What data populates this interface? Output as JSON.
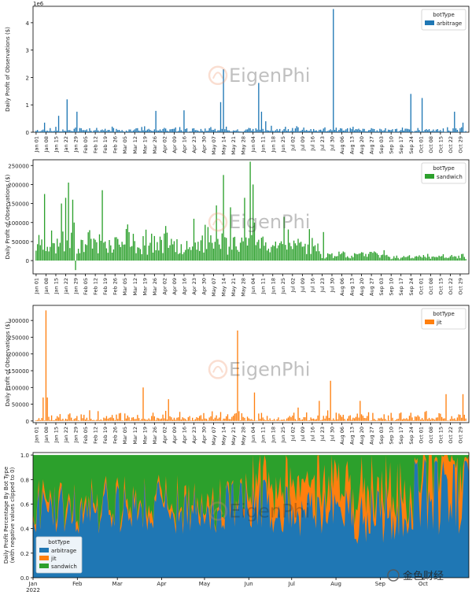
{
  "watermark": "EigenPhi",
  "footer_watermark": "金色财经",
  "colors": {
    "arbitrage": "#1f77b4",
    "sandwich": "#2ca02c",
    "jit": "#ff7f0e"
  },
  "chart_data": [
    {
      "type": "bar",
      "ylabel": "Daily Profit of Observations ($)",
      "ylim": [
        0,
        4600000
      ],
      "yticks": [
        0,
        1,
        2,
        3,
        4
      ],
      "scale_label": "1e6",
      "legend": {
        "title": "botType",
        "entries": [
          "arbitrage"
        ],
        "placement": "top-right"
      },
      "x_ticks": [
        "Jan 01",
        "Jan 08",
        "Jan 15",
        "Jan 22",
        "Jan 29",
        "Feb 05",
        "Feb 12",
        "Feb 19",
        "Feb 26",
        "Mar 05",
        "Mar 12",
        "Mar 19",
        "Mar 26",
        "Apr 02",
        "Apr 09",
        "Apr 16",
        "Apr 23",
        "Apr 30",
        "May 07",
        "May 14",
        "May 21",
        "May 28",
        "Jun 04",
        "Jun 11",
        "Jun 18",
        "Jun 25",
        "Jul 02",
        "Jul 09",
        "Jul 16",
        "Jul 23",
        "Jul 30",
        "Aug 06",
        "Aug 13",
        "Aug 20",
        "Aug 27",
        "Sep 03",
        "Sep 10",
        "Sep 17",
        "Sep 24",
        "Oct 01",
        "Oct 08",
        "Oct 15",
        "Oct 22",
        "Oct 29"
      ],
      "spikes": [
        [
          6,
          350000
        ],
        [
          16,
          600000
        ],
        [
          22,
          1200000
        ],
        [
          29,
          750000
        ],
        [
          85,
          780000
        ],
        [
          105,
          800000
        ],
        [
          131,
          1100000
        ],
        [
          133,
          2300000
        ],
        [
          158,
          1800000
        ],
        [
          160,
          750000
        ],
        [
          163,
          400000
        ],
        [
          211,
          4500000
        ],
        [
          266,
          1400000
        ],
        [
          274,
          1250000
        ],
        [
          297,
          750000
        ],
        [
          303,
          350000
        ]
      ]
    },
    {
      "type": "bar",
      "ylabel": "Daily Profit of Observations ($)",
      "ylim": [
        -35000,
        265000
      ],
      "yticks": [
        0,
        50000,
        100000,
        150000,
        200000,
        250000
      ],
      "legend": {
        "title": "botType",
        "entries": [
          "sandwich"
        ],
        "placement": "top-right"
      },
      "x_ticks": [
        "Jan 01",
        "Jan 08",
        "Jan 15",
        "Jan 22",
        "Jan 29",
        "Feb 05",
        "Feb 12",
        "Feb 19",
        "Feb 26",
        "Mar 05",
        "Mar 12",
        "Mar 19",
        "Mar 26",
        "Apr 02",
        "Apr 09",
        "Apr 16",
        "Apr 23",
        "Apr 30",
        "May 07",
        "May 14",
        "May 21",
        "May 28",
        "Jun 04",
        "Jun 11",
        "Jun 18",
        "Jun 25",
        "Jul 02",
        "Jul 09",
        "Jul 16",
        "Jul 23",
        "Jul 30",
        "Aug 06",
        "Aug 13",
        "Aug 20",
        "Aug 27",
        "Sep 03",
        "Sep 10",
        "Sep 17",
        "Sep 24",
        "Oct 01",
        "Oct 08",
        "Oct 15",
        "Oct 22",
        "Oct 29"
      ],
      "spikes": [
        [
          6,
          175000
        ],
        [
          18,
          150000
        ],
        [
          21,
          165000
        ],
        [
          23,
          205000
        ],
        [
          26,
          160000
        ],
        [
          27,
          100000
        ],
        [
          28,
          -25000
        ],
        [
          47,
          185000
        ],
        [
          65,
          95000
        ],
        [
          112,
          110000
        ],
        [
          128,
          145000
        ],
        [
          133,
          225000
        ],
        [
          138,
          140000
        ],
        [
          148,
          165000
        ],
        [
          152,
          260000
        ],
        [
          154,
          200000
        ],
        [
          155,
          100000
        ],
        [
          176,
          115000
        ],
        [
          204,
          75000
        ]
      ]
    },
    {
      "type": "bar",
      "ylabel": "Daily Profit of Observations ($)",
      "ylim": [
        -5000,
        345000
      ],
      "yticks": [
        0,
        50000,
        100000,
        150000,
        200000,
        250000,
        300000
      ],
      "legend": {
        "title": "botType",
        "entries": [
          "jit"
        ],
        "placement": "top-right"
      },
      "x_ticks": [
        "Jan 01",
        "Jan 08",
        "Jan 15",
        "Jan 22",
        "Jan 29",
        "Feb 05",
        "Feb 12",
        "Feb 19",
        "Feb 26",
        "Mar 05",
        "Mar 12",
        "Mar 19",
        "Mar 26",
        "Apr 02",
        "Apr 09",
        "Apr 16",
        "Apr 23",
        "Apr 30",
        "May 07",
        "May 14",
        "May 21",
        "May 28",
        "Jun 04",
        "Jun 11",
        "Jun 18",
        "Jun 25",
        "Jul 02",
        "Jul 09",
        "Jul 16",
        "Jul 23",
        "Jul 30",
        "Aug 06",
        "Aug 13",
        "Aug 20",
        "Aug 27",
        "Sep 03",
        "Sep 10",
        "Sep 17",
        "Sep 24",
        "Oct 01",
        "Oct 08",
        "Oct 15",
        "Oct 22",
        "Oct 29"
      ],
      "spikes": [
        [
          5,
          70000
        ],
        [
          7,
          330000
        ],
        [
          8,
          70000
        ],
        [
          76,
          100000
        ],
        [
          94,
          65000
        ],
        [
          143,
          270000
        ],
        [
          155,
          85000
        ],
        [
          186,
          40000
        ],
        [
          201,
          60000
        ],
        [
          209,
          120000
        ],
        [
          230,
          60000
        ],
        [
          291,
          80000
        ],
        [
          303,
          80000
        ]
      ]
    },
    {
      "type": "area",
      "stacked": true,
      "ylabel": "Daily Profit Percentage By Bot Type (with negative values clipped to 0)",
      "ylim": [
        0,
        1.02
      ],
      "yticks": [
        0.0,
        0.2,
        0.4,
        0.6,
        0.8,
        1.0
      ],
      "legend": {
        "title": "botType",
        "entries": [
          "arbitrage",
          "jit",
          "sandwich"
        ],
        "placement": "bottom-left"
      },
      "x_ticks": [
        "Jan\n2022",
        "Feb",
        "Mar",
        "Apr",
        "May",
        "Jun",
        "Jul",
        "Aug",
        "Sep",
        "Oct"
      ],
      "series_summary": {
        "arbitrage": {
          "jan_jun": 0.58,
          "jul_sep": 0.52,
          "oct": 0.62
        },
        "jit": {
          "jan_may": 0.04,
          "jun_sep": 0.18,
          "oct": 0.32
        }
      }
    }
  ]
}
